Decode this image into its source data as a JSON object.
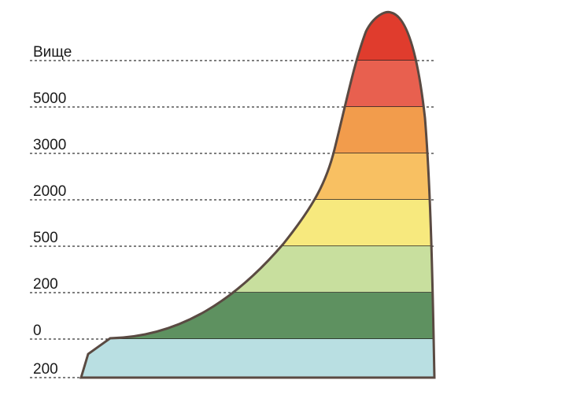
{
  "labels": [
    "Вище",
    "5000",
    "3000",
    "2000",
    "500",
    "200",
    "0",
    "200"
  ]
}
